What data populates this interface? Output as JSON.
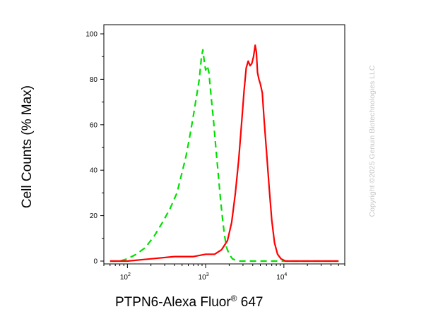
{
  "chart_data": {
    "type": "line",
    "xlabel_main": "PTPN6-Alexa Fluor",
    "xlabel_sup": "®",
    "xlabel_tail": " 647",
    "ylabel": "Cell Counts (% Max)",
    "x_scale": "log",
    "xlim": [
      50,
      60000
    ],
    "ylim": [
      0,
      100
    ],
    "y_ticks": [
      "0",
      "20",
      "40",
      "60",
      "80",
      "100"
    ],
    "x_ticks": [
      {
        "base": "10",
        "exp": "2",
        "value": 100
      },
      {
        "base": "10",
        "exp": "3",
        "value": 1000
      },
      {
        "base": "10",
        "exp": "4",
        "value": 10000
      }
    ],
    "grid": false,
    "legend": "none",
    "series": [
      {
        "color": "#00e000",
        "style": "dashed",
        "x": [
          60,
          80,
          100,
          130,
          170,
          220,
          280,
          350,
          430,
          500,
          560,
          620,
          690,
          760,
          830,
          880,
          920,
          960,
          1000,
          1050,
          1100,
          1180,
          1260,
          1350,
          1450,
          1550,
          1650,
          1750,
          1850,
          2000,
          2200,
          2600,
          3500,
          5000,
          10000,
          50000
        ],
        "y": [
          0,
          0,
          1,
          3,
          6,
          11,
          17,
          23,
          30,
          39,
          46,
          54,
          63,
          72,
          80,
          89,
          93,
          88,
          84,
          86,
          83,
          72,
          62,
          50,
          38,
          27,
          18,
          11,
          6,
          3,
          1,
          0,
          0,
          0,
          0,
          0
        ]
      },
      {
        "color": "#ff0000",
        "style": "solid",
        "x": [
          60,
          100,
          200,
          400,
          700,
          1000,
          1300,
          1600,
          1900,
          2150,
          2400,
          2650,
          2900,
          3100,
          3300,
          3500,
          3700,
          3900,
          4100,
          4300,
          4450,
          4600,
          4800,
          5000,
          5300,
          5600,
          6000,
          6500,
          7000,
          7600,
          8300,
          9200,
          10500,
          12000,
          15000,
          30000,
          50000
        ],
        "y": [
          0,
          0,
          1,
          2,
          2,
          3,
          3,
          5,
          9,
          17,
          30,
          45,
          62,
          75,
          85,
          88,
          86,
          87,
          90,
          95,
          92,
          83,
          80,
          78,
          74,
          62,
          48,
          32,
          18,
          8,
          3,
          1,
          0,
          0,
          0,
          0,
          0
        ]
      }
    ]
  },
  "copyright": "Copyright ©2025 Genuin Biotechnologies LLC"
}
